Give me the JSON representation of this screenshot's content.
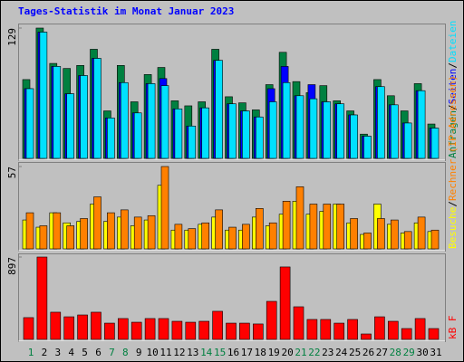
{
  "chart_data": {
    "type": "bar",
    "title": "Tages-Statistik im Monat Januar 2023",
    "categories": [
      "1",
      "2",
      "3",
      "4",
      "5",
      "6",
      "7",
      "8",
      "9",
      "10",
      "11",
      "12",
      "13",
      "14",
      "15",
      "16",
      "17",
      "18",
      "19",
      "20",
      "21",
      "22",
      "23",
      "24",
      "25",
      "26",
      "27",
      "28",
      "29",
      "30",
      "31"
    ],
    "weekend": [
      0,
      6,
      7,
      13,
      14,
      20,
      21,
      27,
      28
    ],
    "weekend_color": "#008040",
    "legend_separator": "/",
    "panels": [
      {
        "ylim": [
          0,
          129
        ],
        "yticks": [
          129
        ],
        "series": [
          {
            "name": "Anfragen",
            "color": "#008040",
            "values": [
              78,
              129,
              94,
              89,
              92,
              108,
              47,
              92,
              56,
              83,
              90,
              57,
              52,
              56,
              108,
              61,
              55,
              48,
              73,
              105,
              76,
              65,
              72,
              57,
              47,
              24,
              78,
              62,
              47,
              74,
              34
            ]
          },
          {
            "name": "Seiten",
            "color": "#0000ff",
            "values": [
              69,
              125,
              91,
              64,
              82,
              99,
              40,
              75,
              45,
              74,
              79,
              49,
              32,
              50,
              97,
              54,
              47,
              41,
              69,
              91,
              62,
              73,
              56,
              54,
              43,
              22,
              71,
              53,
              35,
              67,
              30
            ]
          },
          {
            "name": "Dateien",
            "color": "#00e0ff",
            "values": [
              69,
              125,
              91,
              64,
              82,
              99,
              40,
              75,
              45,
              74,
              72,
              49,
              32,
              50,
              97,
              54,
              47,
              41,
              56,
              75,
              62,
              59,
              56,
              54,
              43,
              22,
              71,
              53,
              35,
              67,
              30
            ]
          }
        ]
      },
      {
        "ylim": [
          0,
          57
        ],
        "yticks": [
          57
        ],
        "series": [
          {
            "name": "Besuche",
            "color": "#ffff00",
            "values": [
              20,
              15,
              25,
              18,
              19,
              31,
              19,
              22,
              16,
              20,
              44,
              13,
              13,
              17,
              22,
              13,
              13,
              22,
              16,
              24,
              33,
              24,
              26,
              31,
              18,
              10,
              31,
              17,
              11,
              18,
              12
            ]
          },
          {
            "name": "Rechner (IP-Adressen)",
            "color": "#ff8000",
            "values": [
              25,
              16,
              25,
              16,
              21,
              36,
              25,
              27,
              22,
              23,
              57,
              17,
              14,
              18,
              27,
              15,
              17,
              28,
              18,
              33,
              43,
              31,
              31,
              31,
              21,
              11,
              21,
              20,
              12,
              22,
              13
            ]
          }
        ]
      },
      {
        "ylim": [
          0,
          897
        ],
        "yticks": [
          897
        ],
        "series": [
          {
            "name": "kB F",
            "color": "#ff0000",
            "values": [
              237,
              897,
              296,
              246,
              266,
              296,
              177,
              227,
              187,
              227,
              227,
              197,
              187,
              197,
              306,
              177,
              177,
              168,
              414,
              789,
              355,
              217,
              217,
              177,
              217,
              59,
              246,
              197,
              118,
              227,
              118
            ]
          }
        ]
      }
    ]
  }
}
